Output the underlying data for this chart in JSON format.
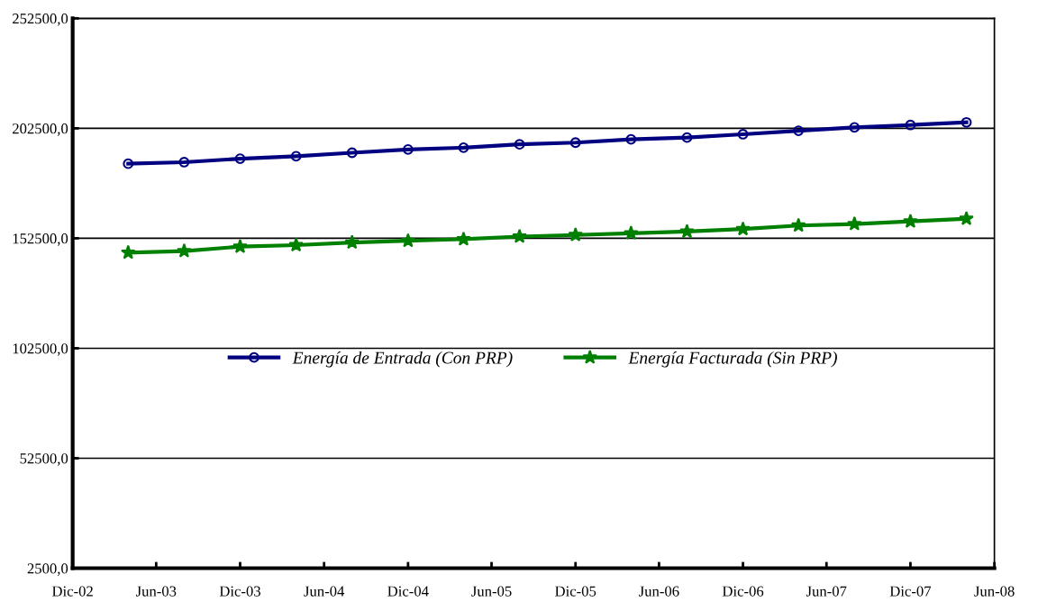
{
  "chart_data": {
    "type": "line",
    "x": [
      "2003-04",
      "2003-08",
      "2003-12",
      "2004-04",
      "2004-08",
      "2004-12",
      "2005-04",
      "2005-08",
      "2005-12",
      "2006-04",
      "2006-08",
      "2006-12",
      "2007-04",
      "2007-08",
      "2007-12",
      "2008-04"
    ],
    "series": [
      {
        "name": "Energía de Entrada (Con PRP)",
        "color": "#000080",
        "marker": "circle",
        "values": [
          186400,
          187100,
          188700,
          189800,
          191400,
          192900,
          193700,
          195200,
          196000,
          197500,
          198300,
          199800,
          201400,
          202900,
          204000,
          205200
        ]
      },
      {
        "name": "Energía Facturada (Sin PRP)",
        "color": "#008000",
        "marker": "star",
        "values": [
          146000,
          146700,
          148700,
          149400,
          150600,
          151400,
          152100,
          153300,
          154000,
          154800,
          155600,
          156700,
          158300,
          159000,
          160200,
          161400
        ]
      }
    ],
    "xlim": [
      "2002-12",
      "2008-06"
    ],
    "xticks": [
      {
        "value": "2002-12",
        "label": "Dic-02"
      },
      {
        "value": "2003-06",
        "label": "Jun-03"
      },
      {
        "value": "2003-12",
        "label": "Dic-03"
      },
      {
        "value": "2004-06",
        "label": "Jun-04"
      },
      {
        "value": "2004-12",
        "label": "Dic-04"
      },
      {
        "value": "2005-06",
        "label": "Jun-05"
      },
      {
        "value": "2005-12",
        "label": "Dic-05"
      },
      {
        "value": "2006-06",
        "label": "Jun-06"
      },
      {
        "value": "2006-12",
        "label": "Dic-06"
      },
      {
        "value": "2007-06",
        "label": "Jun-07"
      },
      {
        "value": "2007-12",
        "label": "Dic-07"
      },
      {
        "value": "2008-06",
        "label": "Jun-08"
      }
    ],
    "ylim": [
      2500,
      252500
    ],
    "yticks": [
      {
        "value": 2500,
        "label": "2500,0"
      },
      {
        "value": 52500,
        "label": "52500,0"
      },
      {
        "value": 102500,
        "label": "102500,0"
      },
      {
        "value": 152500,
        "label": "152500,0"
      },
      {
        "value": 202500,
        "label": "202500,0"
      },
      {
        "value": 252500,
        "label": "252500,0"
      }
    ],
    "grid": "y",
    "legend": "center",
    "line_style": "solid"
  }
}
